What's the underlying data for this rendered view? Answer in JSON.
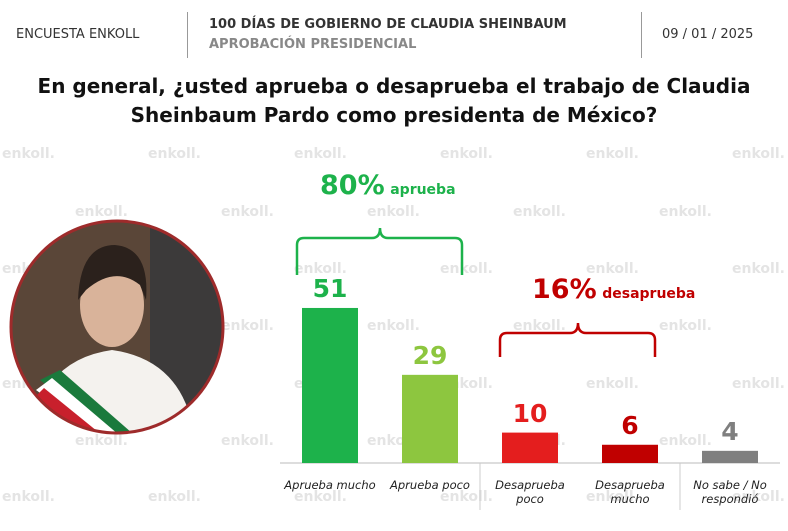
{
  "header": {
    "left": "ENCUESTA ENKOLL",
    "title": "100 DÍAS DE GOBIERNO DE CLAUDIA SHEINBAUM",
    "subtitle": "APROBACIÓN PRESIDENCIAL",
    "date": "09 / 01 / 2025"
  },
  "watermark": "enkoll.",
  "chart_data": {
    "type": "bar",
    "title": "En general, ¿usted aprueba o desaprueba el trabajo de Claudia Sheinbaum Pardo como presidenta de México?",
    "categories": [
      "Aprueba mucho",
      "Aprueba poco",
      "Desaprueba poco",
      "Desaprueba mucho",
      "No sabe / No respondió"
    ],
    "values": [
      51,
      29,
      10,
      6,
      4
    ],
    "colors": [
      "#1db24b",
      "#8dc63f",
      "#e41e1e",
      "#c00000",
      "#7f7f7f"
    ],
    "annotations": [
      {
        "label": "80%",
        "text": "aprueba",
        "color": "#1db24b"
      },
      {
        "label": "16%",
        "text": "desaprueba",
        "color": "#c00000"
      }
    ]
  }
}
